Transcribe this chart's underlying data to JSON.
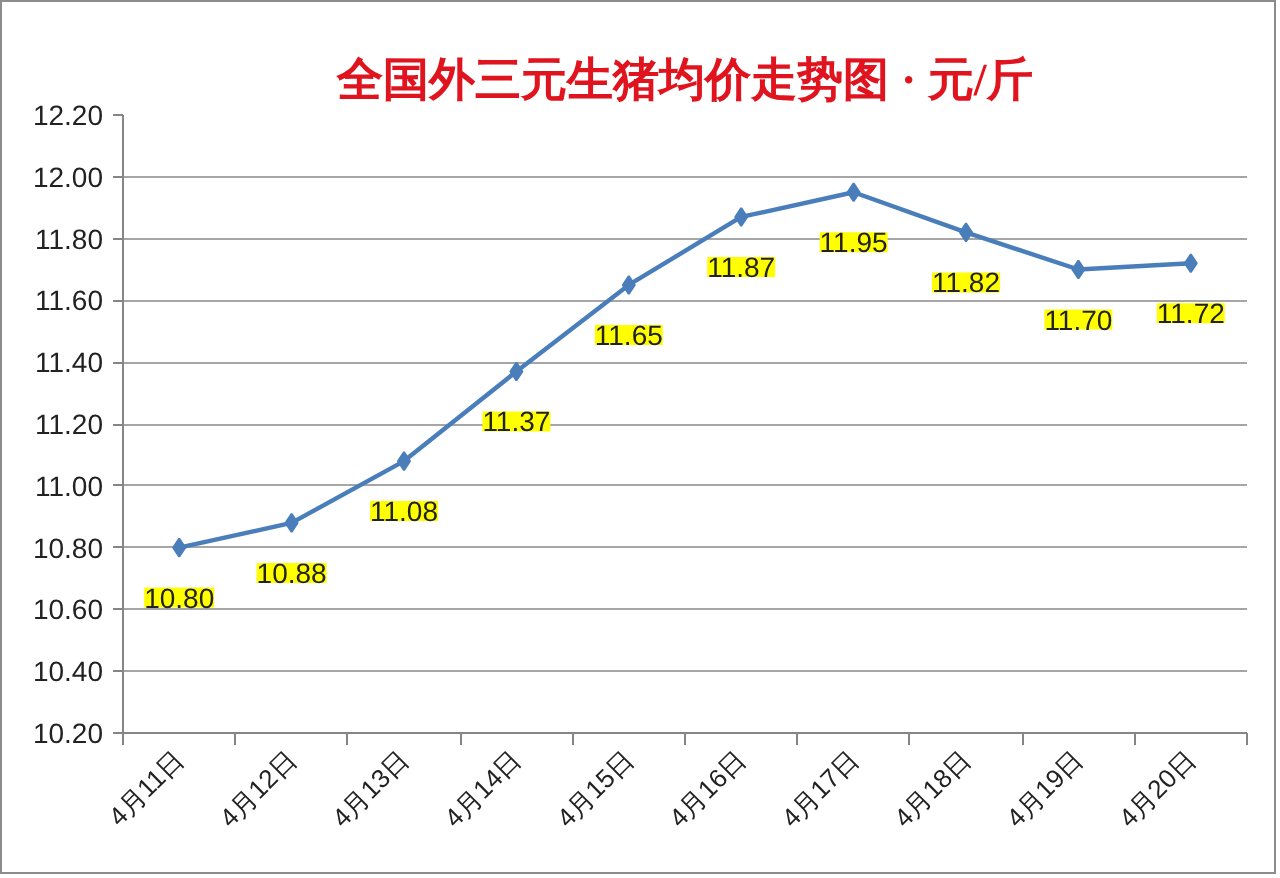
{
  "chart_data": {
    "type": "line",
    "title": "全国外三元生猪均价走势图 · 元/斤",
    "categories": [
      "4月11日",
      "4月12日",
      "4月13日",
      "4月14日",
      "4月15日",
      "4月16日",
      "4月17日",
      "4月18日",
      "4月19日",
      "4月20日"
    ],
    "series": [
      {
        "color": "#4a7ebb",
        "values": [
          10.8,
          10.88,
          11.08,
          11.37,
          11.65,
          11.87,
          11.95,
          11.82,
          11.7,
          11.72
        ],
        "value_labels": [
          "10.80",
          "10.88",
          "11.08",
          "11.37",
          "11.65",
          "11.87",
          "11.95",
          "11.82",
          "11.70",
          "11.72"
        ]
      }
    ],
    "ylim": [
      10.2,
      12.2
    ],
    "yticks": [
      {
        "value": 10.2,
        "label": "10.20"
      },
      {
        "value": 10.4,
        "label": "10.40"
      },
      {
        "value": 10.6,
        "label": "10.60"
      },
      {
        "value": 10.8,
        "label": "10.80"
      },
      {
        "value": 11.0,
        "label": "11.00"
      },
      {
        "value": 11.2,
        "label": "11.20"
      },
      {
        "value": 11.4,
        "label": "11.40"
      },
      {
        "value": 11.6,
        "label": "11.60"
      },
      {
        "value": 11.8,
        "label": "11.80"
      },
      {
        "value": 12.0,
        "label": "12.00"
      },
      {
        "value": 12.2,
        "label": "12.20"
      }
    ],
    "grid": "y",
    "marker": "diamond",
    "line_style": "solid"
  }
}
